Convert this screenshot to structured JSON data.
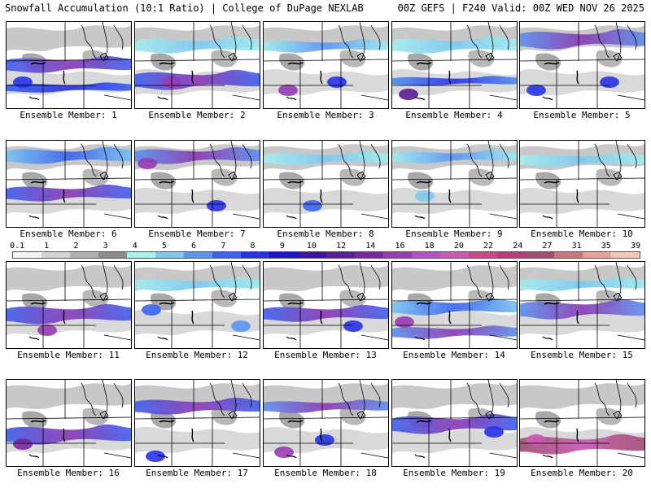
{
  "header": {
    "title": "Snowfall Accumulation (10:1 Ratio) | College of DuPage NEXLAB",
    "run": "00Z GEFS | F240 Valid: 00Z WED NOV 26 2025"
  },
  "legend": {
    "units_hint": "inches",
    "ticks": [
      "0.1",
      "1",
      "2",
      "3",
      "4",
      "5",
      "6",
      "7",
      "8",
      "9",
      "10",
      "12",
      "14",
      "16",
      "18",
      "20",
      "22",
      "24",
      "27",
      "31",
      "35",
      "39"
    ],
    "colors": [
      "#f4f4f4",
      "#d2d2d2",
      "#b0b0b0",
      "#8c8c8c",
      "#a6f0f0",
      "#7ec8f0",
      "#5a96f0",
      "#3c64f0",
      "#2832e6",
      "#1e14c8",
      "#3c14a0",
      "#5a1e96",
      "#7828a0",
      "#963cb4",
      "#b450c8",
      "#c85ab4",
      "#c8468c",
      "#b43c78",
      "#a0506e",
      "#c87878",
      "#e6a096",
      "#f5c8b4"
    ]
  },
  "members": [
    {
      "label": "Ensemble Member: 1",
      "bands": [
        {
          "y": 74,
          "a": "#3c64f0",
          "b": "#8a3ab4",
          "w": 10
        },
        {
          "y": 104,
          "a": "#3c64f0",
          "b": "#2832e6",
          "w": 6
        }
      ],
      "spots": [
        [
          20,
          100,
          "#2832e6"
        ]
      ]
    },
    {
      "label": "Ensemble Member: 2",
      "bands": [
        {
          "y": 92,
          "a": "#3c64f0",
          "b": "#8a3ab4",
          "w": 12
        },
        {
          "y": 50,
          "a": "#a6f0f0",
          "b": "#7ec8f0",
          "w": 10
        }
      ],
      "spots": [
        [
          45,
          100,
          "#963cb4"
        ]
      ]
    },
    {
      "label": "Ensemble Member: 3",
      "bands": [
        {
          "y": 52,
          "a": "#a6f0f0",
          "b": "#5a96f0",
          "w": 8
        }
      ],
      "spots": [
        [
          30,
          110,
          "#963cb4"
        ],
        [
          90,
          100,
          "#2832e6"
        ]
      ]
    },
    {
      "label": "Ensemble Member: 4",
      "bands": [
        {
          "y": 50,
          "a": "#a6f0f0",
          "b": "#7ec8f0",
          "w": 10
        },
        {
          "y": 96,
          "a": "#5a96f0",
          "b": "#2832e6",
          "w": 6
        }
      ],
      "spots": [
        [
          20,
          115,
          "#5a1e96"
        ]
      ]
    },
    {
      "label": "Ensemble Member: 5",
      "bands": [
        {
          "y": 42,
          "a": "#5a96f0",
          "b": "#8a3ab4",
          "w": 12
        }
      ],
      "spots": [
        [
          20,
          110,
          "#2832e6"
        ],
        [
          110,
          100,
          "#2832e6"
        ]
      ]
    },
    {
      "label": "Ensemble Member: 6",
      "bands": [
        {
          "y": 232,
          "a": "#3c64f0",
          "b": "#8a3ab4",
          "w": 10
        },
        {
          "y": 186,
          "a": "#7ec8f0",
          "b": "#3c64f0",
          "w": 10
        }
      ],
      "spots": []
    },
    {
      "label": "Ensemble Member: 7",
      "bands": [
        {
          "y": 186,
          "a": "#5a96f0",
          "b": "#8a3ab4",
          "w": 10
        }
      ],
      "spots": [
        [
          100,
          252,
          "#2832e6"
        ],
        [
          15,
          200,
          "#963cb4"
        ]
      ]
    },
    {
      "label": "Ensemble Member: 8",
      "bands": [
        {
          "y": 190,
          "a": "#a6f0f0",
          "b": "#7ec8f0",
          "w": 8
        }
      ],
      "spots": [
        [
          60,
          252,
          "#3c64f0"
        ]
      ]
    },
    {
      "label": "Ensemble Member: 9",
      "bands": [
        {
          "y": 188,
          "a": "#a6f0f0",
          "b": "#5a96f0",
          "w": 8
        }
      ],
      "spots": [
        [
          40,
          240,
          "#7ec8f0"
        ]
      ]
    },
    {
      "label": "Ensemble Member: 10",
      "bands": [
        {
          "y": 192,
          "a": "#a6f0f0",
          "b": "#7ec8f0",
          "w": 8
        }
      ],
      "spots": []
    },
    {
      "label": "Ensemble Member: 11",
      "bands": [
        {
          "y": 380,
          "a": "#3c64f0",
          "b": "#8a3ab4",
          "w": 12
        }
      ],
      "spots": [
        [
          50,
          405,
          "#963cb4"
        ]
      ]
    },
    {
      "label": "Ensemble Member: 12",
      "bands": [
        {
          "y": 345,
          "a": "#a6f0f0",
          "b": "#7ec8f0",
          "w": 8
        }
      ],
      "spots": [
        [
          20,
          380,
          "#3c64f0"
        ],
        [
          130,
          400,
          "#5a96f0"
        ]
      ]
    },
    {
      "label": "Ensemble Member: 13",
      "bands": [
        {
          "y": 380,
          "a": "#3c64f0",
          "b": "#8a3ab4",
          "w": 10
        }
      ],
      "spots": [
        [
          110,
          400,
          "#2832e6"
        ]
      ]
    },
    {
      "label": "Ensemble Member: 14",
      "bands": [
        {
          "y": 372,
          "a": "#7ec8f0",
          "b": "#3c64f0",
          "w": 10
        },
        {
          "y": 404,
          "a": "#5a96f0",
          "b": "#8a3ab4",
          "w": 8
        }
      ],
      "spots": [
        [
          15,
          395,
          "#963cb4"
        ]
      ]
    },
    {
      "label": "Ensemble Member: 15",
      "bands": [
        {
          "y": 374,
          "a": "#5a96f0",
          "b": "#8a3ab4",
          "w": 12
        },
        {
          "y": 345,
          "a": "#a6f0f0",
          "b": "#7ec8f0",
          "w": 8
        }
      ],
      "spots": []
    },
    {
      "label": "Ensemble Member: 16",
      "bands": [
        {
          "y": 528,
          "a": "#3c64f0",
          "b": "#8a3ab4",
          "w": 12
        }
      ],
      "spots": [
        [
          20,
          545,
          "#7828a0"
        ]
      ]
    },
    {
      "label": "Ensemble Member: 17",
      "bands": [
        {
          "y": 494,
          "a": "#3c64f0",
          "b": "#8a3ab4",
          "w": 10
        }
      ],
      "spots": [
        [
          25,
          560,
          "#2832e6"
        ]
      ]
    },
    {
      "label": "Ensemble Member: 18",
      "bands": [
        {
          "y": 495,
          "a": "#5a96f0",
          "b": "#8a3ab4",
          "w": 8
        }
      ],
      "spots": [
        [
          25,
          555,
          "#963cb4"
        ],
        [
          75,
          540,
          "#2832e6"
        ]
      ]
    },
    {
      "label": "Ensemble Member: 19",
      "bands": [
        {
          "y": 515,
          "a": "#3c64f0",
          "b": "#8a3ab4",
          "w": 12
        }
      ],
      "spots": [
        [
          125,
          530,
          "#2832e6"
        ]
      ]
    },
    {
      "label": "Ensemble Member: 20",
      "bands": [
        {
          "y": 540,
          "a": "#a0506e",
          "b": "#c85ab4",
          "w": 12
        }
      ],
      "spots": [
        [
          20,
          540,
          "#c85ab4"
        ]
      ]
    }
  ]
}
